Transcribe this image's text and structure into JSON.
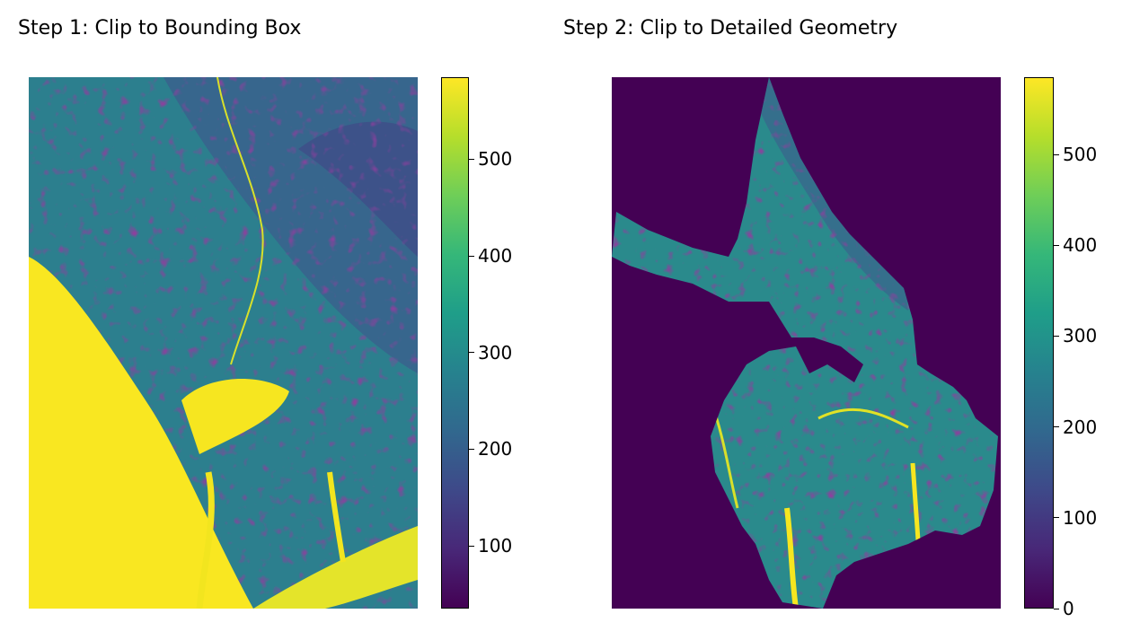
{
  "chart_data": [
    {
      "type": "heatmap",
      "title": "Step 1: Clip to Bounding Box",
      "colormap": "viridis",
      "axes_visible": false,
      "grid": false,
      "colorbar": {
        "position": "right",
        "range": [
          35,
          585
        ],
        "ticks": [
          100,
          200,
          300,
          400,
          500
        ],
        "tick_labels": [
          "100",
          "200",
          "300",
          "400",
          "500"
        ]
      }
    },
    {
      "type": "heatmap",
      "title": "Step 2: Clip to Detailed Geometry",
      "colormap": "viridis",
      "axes_visible": false,
      "grid": false,
      "background_value": 0,
      "colorbar": {
        "position": "right",
        "range": [
          0,
          585
        ],
        "ticks": [
          0,
          100,
          200,
          300,
          400,
          500
        ],
        "tick_labels": [
          "0",
          "100",
          "200",
          "300",
          "400",
          "500"
        ]
      }
    }
  ]
}
